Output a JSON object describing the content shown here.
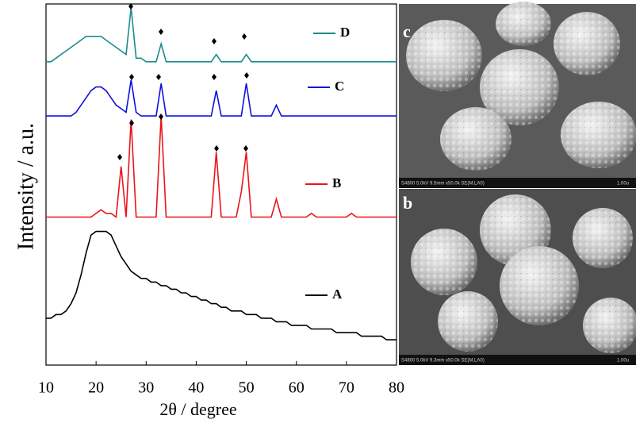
{
  "chart_data": {
    "type": "line",
    "x_label": "2θ / degree",
    "y_label": "Intensity / a.u.",
    "x": [
      10,
      11,
      12,
      13,
      14,
      15,
      16,
      17,
      18,
      19,
      20,
      21,
      22,
      23,
      24,
      25,
      26,
      27,
      28,
      29,
      30,
      31,
      32,
      33,
      34,
      35,
      36,
      37,
      38,
      39,
      40,
      41,
      42,
      43,
      44,
      45,
      46,
      47,
      48,
      49,
      50,
      51,
      52,
      53,
      54,
      55,
      56,
      57,
      58,
      59,
      60,
      61,
      62,
      63,
      64,
      65,
      66,
      67,
      68,
      69,
      70,
      71,
      72,
      73,
      74,
      75,
      76,
      77,
      78,
      79,
      80
    ],
    "xlim": [
      10,
      80
    ],
    "xticks": [
      10,
      20,
      30,
      40,
      50,
      60,
      70,
      80
    ],
    "ylim": [
      0,
      100
    ],
    "series": [
      {
        "name": "A",
        "color": "#000000",
        "values": [
          13,
          13,
          14,
          14,
          15,
          17,
          20,
          25,
          31,
          36,
          37,
          37,
          37,
          36,
          33,
          30,
          28,
          26,
          25,
          24,
          24,
          23,
          23,
          22,
          22,
          21,
          21,
          20,
          20,
          19,
          19,
          18,
          18,
          17,
          17,
          16,
          16,
          15,
          15,
          15,
          14,
          14,
          14,
          13,
          13,
          13,
          12,
          12,
          12,
          11,
          11,
          11,
          11,
          10,
          10,
          10,
          10,
          10,
          9,
          9,
          9,
          9,
          9,
          8,
          8,
          8,
          8,
          8,
          7,
          7,
          7
        ]
      },
      {
        "name": "B",
        "color": "#e8151b",
        "values": [
          41,
          41,
          41,
          41,
          41,
          41,
          41,
          41,
          41,
          41,
          42,
          43,
          42,
          42,
          41,
          55,
          41,
          68,
          41,
          41,
          41,
          41,
          41,
          69,
          41,
          41,
          41,
          41,
          41,
          41,
          41,
          41,
          41,
          41,
          59,
          41,
          41,
          41,
          41,
          48,
          59,
          41,
          41,
          41,
          41,
          41,
          46,
          41,
          41,
          41,
          41,
          41,
          41,
          42,
          41,
          41,
          41,
          41,
          41,
          41,
          41,
          42,
          41,
          41,
          41,
          41,
          41,
          41,
          41,
          41,
          41
        ]
      },
      {
        "name": "C",
        "color": "#1010e0",
        "values": [
          69,
          69,
          69,
          69,
          69,
          69,
          70,
          72,
          74,
          76,
          77,
          77,
          76,
          74,
          72,
          71,
          70,
          79,
          70,
          69,
          69,
          69,
          69,
          78,
          69,
          69,
          69,
          69,
          69,
          69,
          69,
          69,
          69,
          69,
          76,
          69,
          69,
          69,
          69,
          69,
          78,
          69,
          69,
          69,
          69,
          69,
          72,
          69,
          69,
          69,
          69,
          69,
          69,
          69,
          69,
          69,
          69,
          69,
          69,
          69,
          69,
          69,
          69,
          69,
          69,
          69,
          69,
          69,
          69,
          69,
          69
        ]
      },
      {
        "name": "D",
        "color": "#1a8c8c",
        "values": [
          84,
          84,
          85,
          86,
          87,
          88,
          89,
          90,
          91,
          91,
          91,
          91,
          90,
          89,
          88,
          87,
          86,
          99,
          85,
          85,
          84,
          84,
          84,
          89,
          84,
          84,
          84,
          84,
          84,
          84,
          84,
          84,
          84,
          84,
          86,
          84,
          84,
          84,
          84,
          84,
          86,
          84,
          84,
          84,
          84,
          84,
          84,
          84,
          84,
          84,
          84,
          84,
          84,
          84,
          84,
          84,
          84,
          84,
          84,
          84,
          84,
          84,
          84,
          84,
          84,
          84,
          84,
          84,
          84,
          84,
          84
        ]
      }
    ]
  },
  "panels": [
    {
      "label": "c",
      "caption": "S4800 5.0kV 9.5mm x50.0k SE(M,LA0)",
      "scale": "1.00u"
    },
    {
      "label": "b",
      "caption": "S4800 5.0kV 9.3mm x50.0k SE(M,LA0)",
      "scale": "1.00u"
    }
  ]
}
